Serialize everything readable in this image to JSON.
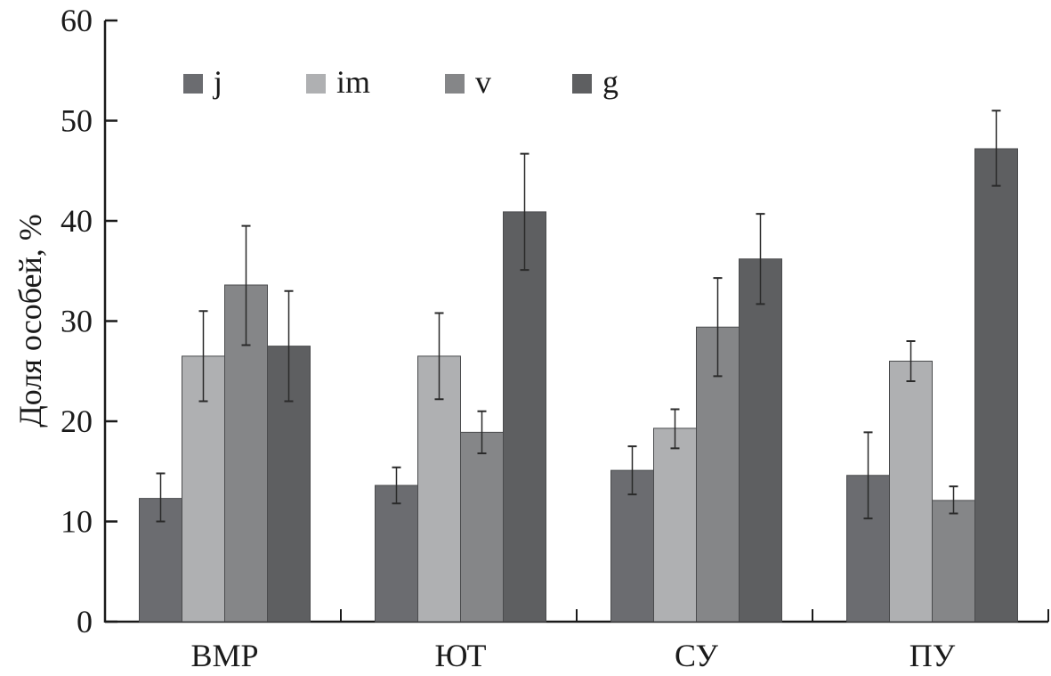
{
  "chart_data": {
    "type": "bar",
    "title": "",
    "xlabel": "",
    "ylabel": "Доля особей, %",
    "ylim": [
      0,
      60
    ],
    "yticks": [
      0,
      10,
      20,
      30,
      40,
      50,
      60
    ],
    "grid": false,
    "legend_position": "top-left",
    "categories": [
      "ВМР",
      "ЮТ",
      "СУ",
      "ПУ"
    ],
    "series": [
      {
        "name": "j",
        "color": "#6b6c70",
        "values": [
          12.3,
          13.6,
          15.1,
          14.6
        ],
        "err_low": [
          10.0,
          11.8,
          12.7,
          10.3
        ],
        "err_high": [
          14.8,
          15.4,
          17.5,
          18.9
        ]
      },
      {
        "name": "im",
        "color": "#afb0b2",
        "values": [
          26.5,
          26.5,
          19.3,
          26.0
        ],
        "err_low": [
          22.0,
          22.2,
          17.3,
          24.0
        ],
        "err_high": [
          31.0,
          30.8,
          21.2,
          28.0
        ]
      },
      {
        "name": "v",
        "color": "#858688",
        "values": [
          33.6,
          18.9,
          29.4,
          12.1
        ],
        "err_low": [
          27.6,
          16.8,
          24.5,
          10.8
        ],
        "err_high": [
          39.5,
          21.0,
          34.3,
          13.5
        ]
      },
      {
        "name": "g",
        "color": "#5e5f61",
        "values": [
          27.5,
          40.9,
          36.2,
          47.2
        ],
        "err_low": [
          22.0,
          35.1,
          31.7,
          43.5
        ],
        "err_high": [
          33.0,
          46.7,
          40.7,
          51.0
        ]
      }
    ]
  }
}
